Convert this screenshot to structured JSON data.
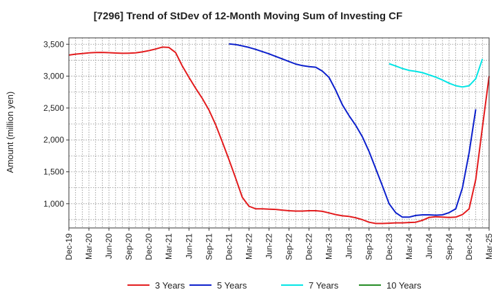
{
  "chart_data": {
    "type": "line",
    "title": "[7296]  Trend of StDev of 12-Month Moving Sum of Investing CF",
    "xlabel": "",
    "ylabel": "Amount (million yen)",
    "ylim": [
      620,
      3600
    ],
    "y_ticks": [
      1000,
      1500,
      2000,
      2500,
      3000,
      3500
    ],
    "y_tick_labels": [
      "1,000",
      "1,500",
      "2,000",
      "2,500",
      "3,000",
      "3,500"
    ],
    "x_tick_labels": [
      "Dec-19",
      "Mar-20",
      "Jun-20",
      "Sep-20",
      "Dec-20",
      "Mar-21",
      "Jun-21",
      "Sep-21",
      "Dec-21",
      "Mar-22",
      "Jun-22",
      "Sep-22",
      "Dec-22",
      "Mar-23",
      "Jun-23",
      "Sep-23",
      "Dec-23",
      "Mar-24",
      "Jun-24",
      "Sep-24",
      "Dec-24",
      "Mar-25"
    ],
    "grid": true,
    "legend_position": "bottom",
    "series": [
      {
        "name": "3 Years",
        "color": "#e31a1c",
        "start_month": 0,
        "values": [
          3330,
          3345,
          3355,
          3365,
          3370,
          3372,
          3368,
          3362,
          3358,
          3360,
          3365,
          3380,
          3400,
          3425,
          3455,
          3450,
          3370,
          3160,
          2980,
          2810,
          2650,
          2470,
          2240,
          1970,
          1690,
          1400,
          1100,
          960,
          920,
          920,
          915,
          910,
          900,
          890,
          885,
          885,
          890,
          890,
          880,
          855,
          830,
          810,
          800,
          780,
          750,
          710,
          690,
          690,
          695,
          700,
          700,
          705,
          710,
          740,
          785,
          795,
          790,
          785,
          790,
          830,
          920,
          1380,
          2200,
          3000
        ]
      },
      {
        "name": "5 Years",
        "color": "#0a1ecc",
        "start_month": 24,
        "values": [
          3505,
          3495,
          3475,
          3450,
          3420,
          3385,
          3350,
          3310,
          3270,
          3230,
          3190,
          3165,
          3150,
          3140,
          3080,
          2980,
          2780,
          2550,
          2380,
          2230,
          2050,
          1820,
          1550,
          1280,
          1000,
          860,
          790,
          790,
          815,
          825,
          825,
          820,
          825,
          860,
          920,
          1250,
          1800,
          2480
        ]
      },
      {
        "name": "7 Years",
        "color": "#00e5e5",
        "start_month": 48,
        "values": [
          3195,
          3160,
          3120,
          3090,
          3075,
          3055,
          3020,
          2985,
          2940,
          2890,
          2850,
          2830,
          2850,
          2960,
          3270
        ]
      },
      {
        "name": "10 Years",
        "color": "#228b22",
        "start_month": 0,
        "values": []
      }
    ]
  }
}
